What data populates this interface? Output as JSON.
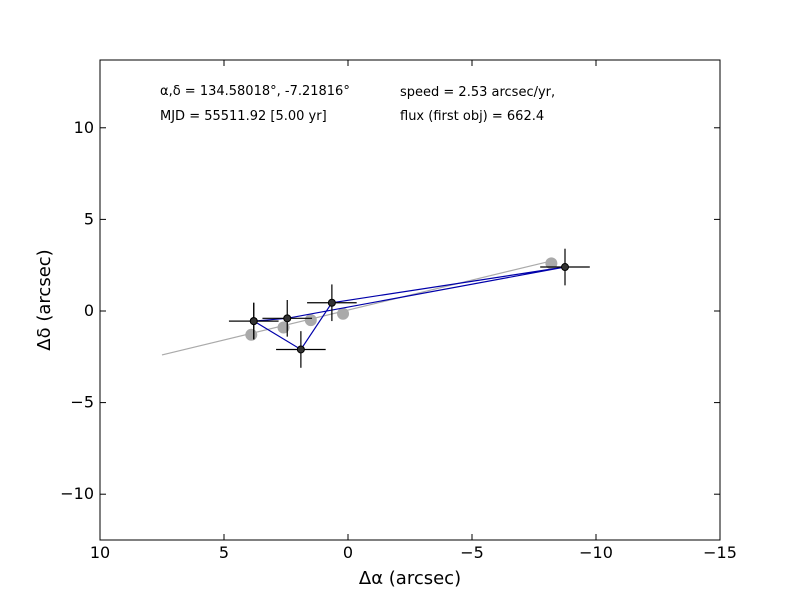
{
  "chart_data": {
    "type": "scatter",
    "title": "",
    "xlabel": "Δα (arcsec)",
    "ylabel": "Δδ (arcsec)",
    "xlim": [
      10,
      -15
    ],
    "ylim": [
      -12.5,
      13.7
    ],
    "xticks": [
      10,
      5,
      0,
      -5,
      -10,
      -15
    ],
    "xtick_labels": [
      "10",
      "5",
      "0",
      "−5",
      "−10",
      "−15"
    ],
    "yticks": [
      10,
      5,
      0,
      -5,
      -10
    ],
    "ytick_labels": [
      "10",
      "5",
      "0",
      "−5",
      "−10"
    ],
    "grid": false,
    "annotations": [
      {
        "text": "α,δ = 134.58018°, -7.21816°"
      },
      {
        "text": "MJD = 55511.92 [5.00 yr]"
      },
      {
        "text": "speed = 2.53 arcsec/yr,"
      },
      {
        "text": "flux (first obj) = 662.4"
      }
    ],
    "fit_line": {
      "color": "#aaaaaa",
      "points": [
        [
          7.5,
          -2.4
        ],
        [
          -8.1,
          2.7
        ]
      ]
    },
    "gray_points": {
      "color": "#aaaaaa",
      "x": [
        3.9,
        2.6,
        1.5,
        0.2,
        -8.2
      ],
      "y": [
        -1.3,
        -0.9,
        -0.5,
        -0.15,
        2.6
      ]
    },
    "observations": {
      "color": "#000000",
      "line_color": "#0000aa",
      "x": [
        3.8,
        2.45,
        -8.75,
        0.65,
        1.9,
        3.8
      ],
      "y": [
        -0.55,
        -0.4,
        2.4,
        0.45,
        -2.1,
        -0.55
      ],
      "xerr": [
        1.0,
        1.0,
        1.0,
        1.0,
        1.0,
        1.0
      ],
      "yerr": [
        1.0,
        1.0,
        1.0,
        1.0,
        1.0,
        1.0
      ]
    }
  }
}
